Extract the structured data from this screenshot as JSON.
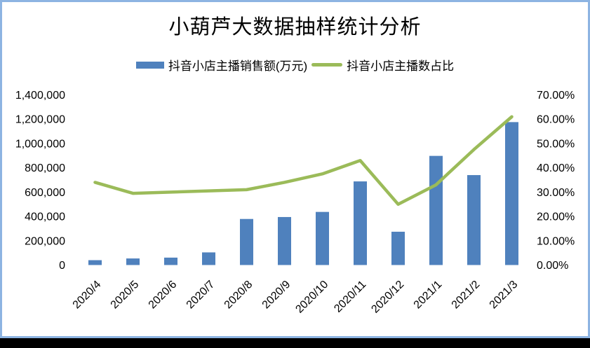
{
  "page": {
    "background": "#000000"
  },
  "card": {
    "background": "#ffffff",
    "border_color": "#8db4e2"
  },
  "chart_data": {
    "type": "combo",
    "title": "小葫芦大数据抽样统计分析",
    "categories": [
      "2020/4",
      "2020/5",
      "2020/6",
      "2020/7",
      "2020/8",
      "2020/9",
      "2020/10",
      "2020/11",
      "2020/12",
      "2021/1",
      "2021/2",
      "2021/3"
    ],
    "series": [
      {
        "name": "抖音小店主播销售额(万元)",
        "type": "bar",
        "axis": "left",
        "color": "#4f81bd",
        "values": [
          40000,
          54000,
          61000,
          104000,
          379000,
          395000,
          437000,
          688000,
          274000,
          898000,
          740000,
          1176000
        ]
      },
      {
        "name": "抖音小店主播数占比",
        "type": "line",
        "axis": "right",
        "color": "#9bbb59",
        "values": [
          0.34,
          0.295,
          0.3,
          0.305,
          0.31,
          0.34,
          0.375,
          0.43,
          0.25,
          0.33,
          0.475,
          0.61
        ]
      }
    ],
    "left_axis": {
      "min": 0,
      "max": 1400000,
      "step": 200000,
      "tick_labels": [
        "0",
        "200,000",
        "400,000",
        "600,000",
        "800,000",
        "1,000,000",
        "1,200,000",
        "1,400,000"
      ]
    },
    "right_axis": {
      "min": 0,
      "max": 0.7,
      "step": 0.1,
      "tick_labels": [
        "0.00%",
        "10.00%",
        "20.00%",
        "30.00%",
        "40.00%",
        "50.00%",
        "60.00%",
        "70.00%"
      ]
    },
    "legend_position": "top",
    "grid": false
  }
}
